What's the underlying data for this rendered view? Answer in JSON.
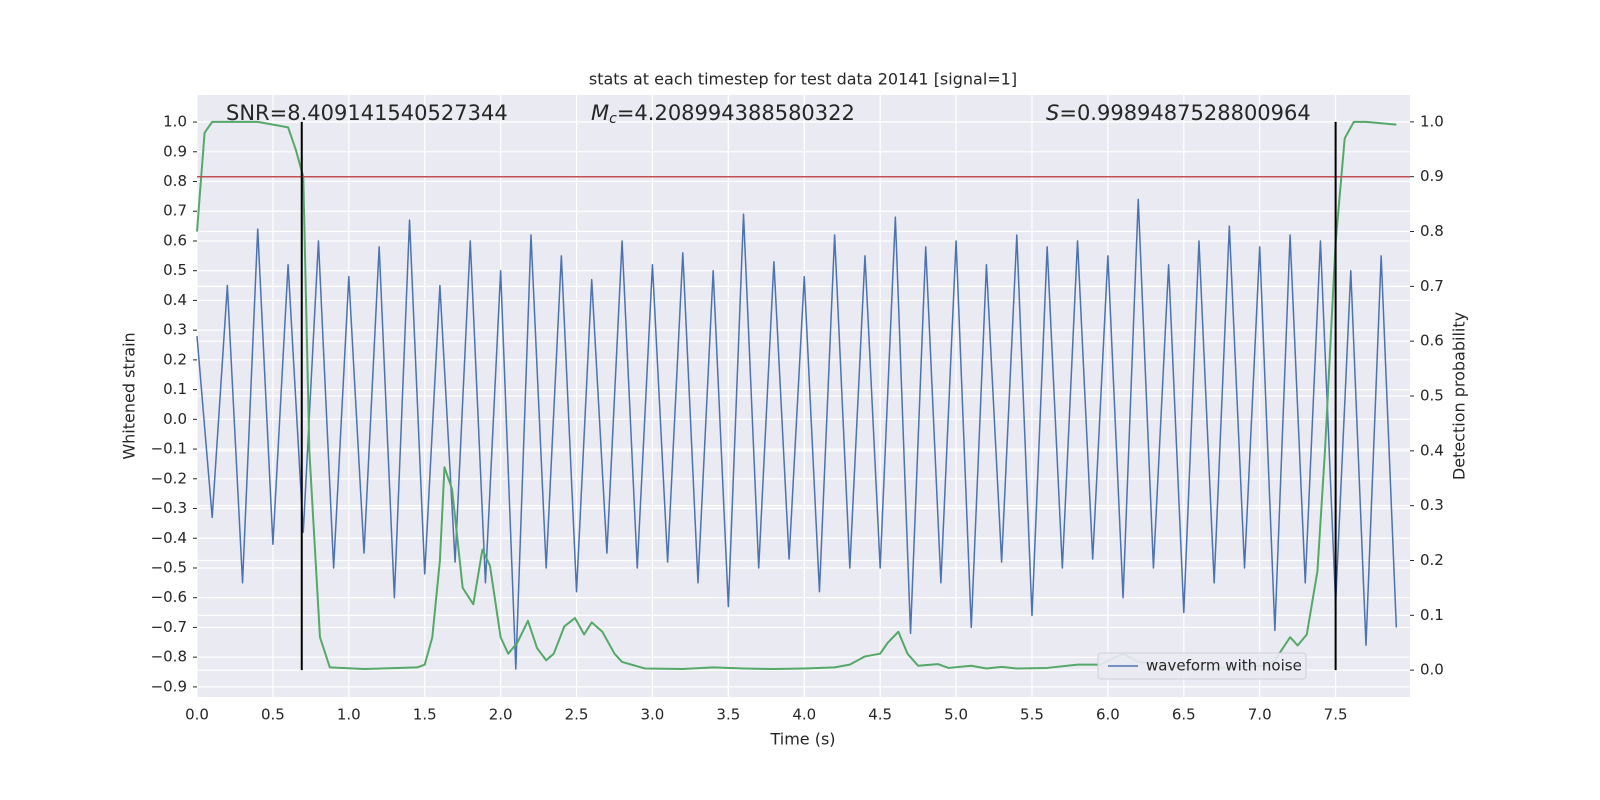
{
  "chart_data": {
    "type": "line",
    "title": "stats at each timestep for test data 20141 [signal=1]",
    "xlabel": "Time (s)",
    "ylabel": "Whitened strain",
    "y2label": "Detection probability",
    "xlim": [
      0,
      7.99
    ],
    "ylim": [
      -0.934,
      1.091
    ],
    "y2lim": [
      -0.049,
      1.049
    ],
    "xticks": [
      {
        "value": 0,
        "label": "0.0"
      },
      0.5,
      {
        "value": 1,
        "label": "1.0"
      },
      1.5,
      {
        "value": 2,
        "label": "2.0"
      },
      2.5,
      {
        "value": 3,
        "label": "3.0"
      },
      3.5,
      {
        "value": 4,
        "label": "4.0"
      },
      4.5,
      {
        "value": 5,
        "label": "5.0"
      },
      5.5,
      {
        "value": 6,
        "label": "6.0"
      },
      6.5,
      {
        "value": 7,
        "label": "7.0"
      },
      7.5
    ],
    "yticks": [
      {
        "value": -0.9,
        "label": "−0.9"
      },
      {
        "value": -0.8,
        "label": "−0.8"
      },
      {
        "value": -0.7,
        "label": "−0.7"
      },
      {
        "value": -0.6,
        "label": "−0.6"
      },
      {
        "value": -0.5,
        "label": "−0.5"
      },
      {
        "value": -0.4,
        "label": "−0.4"
      },
      {
        "value": -0.3,
        "label": "−0.3"
      },
      {
        "value": -0.2,
        "label": "−0.2"
      },
      {
        "value": -0.1,
        "label": "−0.1"
      },
      {
        "value": 0,
        "label": "0.0"
      },
      0.1,
      0.2,
      0.3,
      0.4,
      0.5,
      0.6,
      0.7,
      0.8,
      0.9,
      {
        "value": 1,
        "label": "1.0"
      }
    ],
    "y2ticks": [
      {
        "value": 0,
        "label": "0.0"
      },
      0.1,
      0.2,
      0.3,
      0.4,
      0.5,
      0.6,
      0.7,
      0.8,
      0.9,
      {
        "value": 1,
        "label": "1.0"
      }
    ],
    "grid": true,
    "legend": "lower right",
    "annotations": [
      {
        "text": "SNR=8.409141540527344"
      },
      {
        "symbol": "M",
        "subscript": "c",
        "text": "=4.208994388580322"
      },
      {
        "symbol": "S",
        "text": "=0.9989487528800964"
      }
    ],
    "series": [
      {
        "name": "waveform with noise",
        "color": "#4c72b0",
        "axis": "y",
        "x": [
          0.0,
          0.1,
          0.2,
          0.3,
          0.4,
          0.5,
          0.6,
          0.7,
          0.8,
          0.9,
          1.0,
          1.1,
          1.2,
          1.3,
          1.4,
          1.5,
          1.6,
          1.7,
          1.8,
          1.9,
          2.0,
          2.1,
          2.2,
          2.3,
          2.4,
          2.5,
          2.6,
          2.7,
          2.8,
          2.9,
          3.0,
          3.1,
          3.2,
          3.3,
          3.4,
          3.5,
          3.6,
          3.7,
          3.8,
          3.9,
          4.0,
          4.1,
          4.2,
          4.3,
          4.4,
          4.5,
          4.6,
          4.7,
          4.8,
          4.9,
          5.0,
          5.1,
          5.2,
          5.3,
          5.4,
          5.5,
          5.6,
          5.7,
          5.8,
          5.9,
          6.0,
          6.1,
          6.2,
          6.3,
          6.4,
          6.5,
          6.6,
          6.7,
          6.8,
          6.9,
          7.0,
          7.1,
          7.2,
          7.3,
          7.4,
          7.5,
          7.6,
          7.7,
          7.8,
          7.9
        ],
        "values": [
          0.28,
          -0.33,
          0.45,
          -0.55,
          0.64,
          -0.42,
          0.52,
          -0.38,
          0.6,
          -0.5,
          0.48,
          -0.45,
          0.58,
          -0.6,
          0.67,
          -0.52,
          0.45,
          -0.48,
          0.6,
          -0.55,
          0.5,
          -0.84,
          0.62,
          -0.5,
          0.55,
          -0.58,
          0.47,
          -0.45,
          0.6,
          -0.5,
          0.52,
          -0.48,
          0.56,
          -0.55,
          0.5,
          -0.63,
          0.69,
          -0.5,
          0.53,
          -0.47,
          0.48,
          -0.58,
          0.62,
          -0.5,
          0.55,
          -0.5,
          0.68,
          -0.72,
          0.58,
          -0.55,
          0.6,
          -0.7,
          0.52,
          -0.48,
          0.62,
          -0.66,
          0.58,
          -0.5,
          0.6,
          -0.47,
          0.55,
          -0.6,
          0.74,
          -0.5,
          0.52,
          -0.65,
          0.6,
          -0.55,
          0.65,
          -0.5,
          0.58,
          -0.71,
          0.62,
          -0.55,
          0.6,
          -0.62,
          0.5,
          -0.76,
          0.55,
          -0.7
        ]
      },
      {
        "color": "#55a868",
        "axis": "y2",
        "x": [
          0.0,
          0.05,
          0.1,
          0.2,
          0.4,
          0.6,
          0.65,
          0.7,
          0.74,
          0.81,
          0.875,
          1.1,
          1.45,
          1.5,
          1.55,
          1.6,
          1.63,
          1.68,
          1.75,
          1.82,
          1.88,
          1.93,
          2.0,
          2.05,
          2.11,
          2.18,
          2.24,
          2.3,
          2.35,
          2.42,
          2.49,
          2.55,
          2.6,
          2.67,
          2.75,
          2.8,
          2.95,
          3.2,
          3.4,
          3.6,
          3.8,
          4.0,
          4.2,
          4.3,
          4.4,
          4.5,
          4.55,
          4.62,
          4.68,
          4.75,
          4.88,
          4.95,
          5.1,
          5.2,
          5.3,
          5.4,
          5.6,
          5.8,
          5.95,
          6.1,
          6.2,
          6.35,
          6.5,
          6.7,
          6.9,
          7.05,
          7.1,
          7.2,
          7.25,
          7.31,
          7.38,
          7.43,
          7.5,
          7.56,
          7.62,
          7.7,
          7.9
        ],
        "values": [
          0.8,
          0.98,
          1.0,
          1.0,
          1.0,
          0.99,
          0.95,
          0.9,
          0.4,
          0.06,
          0.005,
          0.002,
          0.005,
          0.01,
          0.06,
          0.2,
          0.37,
          0.33,
          0.15,
          0.12,
          0.22,
          0.19,
          0.06,
          0.03,
          0.05,
          0.09,
          0.04,
          0.018,
          0.03,
          0.08,
          0.095,
          0.065,
          0.087,
          0.07,
          0.03,
          0.015,
          0.003,
          0.002,
          0.005,
          0.003,
          0.002,
          0.003,
          0.005,
          0.01,
          0.025,
          0.03,
          0.05,
          0.07,
          0.03,
          0.008,
          0.011,
          0.004,
          0.008,
          0.003,
          0.006,
          0.003,
          0.004,
          0.01,
          0.01,
          0.03,
          0.015,
          0.01,
          0.002,
          0.003,
          0.007,
          0.008,
          0.018,
          0.06,
          0.045,
          0.065,
          0.18,
          0.4,
          0.78,
          0.97,
          1.0,
          1.0,
          0.995
        ]
      }
    ],
    "hlines": [
      {
        "axis": "y2",
        "value": 0.9,
        "color": "#c44e52"
      }
    ],
    "vlines": [
      {
        "value": 0.69,
        "ymin": 0,
        "ymax": 1,
        "axis": "y2",
        "color": "#000000"
      },
      {
        "value": 7.5,
        "ymin": 0,
        "ymax": 1,
        "axis": "y2",
        "color": "#000000"
      }
    ]
  }
}
